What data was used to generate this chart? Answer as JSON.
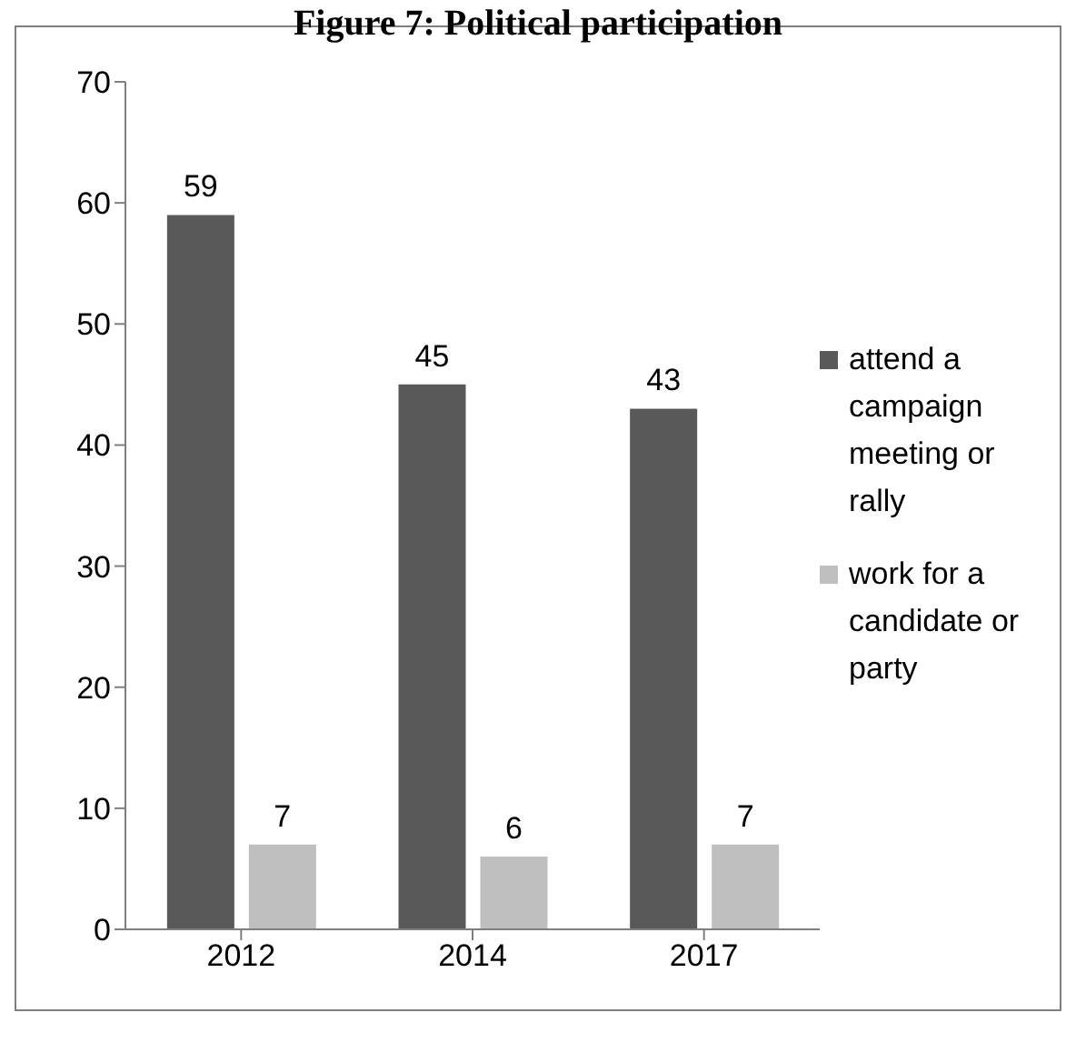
{
  "chart_data": {
    "type": "bar",
    "title": "Figure 7: Political participation",
    "categories": [
      "2012",
      "2014",
      "2017"
    ],
    "series": [
      {
        "name": "attend a campaign meeting or rally",
        "color": "#595959",
        "values": [
          59,
          45,
          43
        ]
      },
      {
        "name": "work for a candidate or party",
        "color": "#bfbfbf",
        "values": [
          7,
          6,
          7
        ]
      }
    ],
    "ylim": [
      0,
      70
    ],
    "yticks": [
      0,
      10,
      20,
      30,
      40,
      50,
      60,
      70
    ],
    "data_labels": true,
    "legend": "right",
    "grid": false
  }
}
